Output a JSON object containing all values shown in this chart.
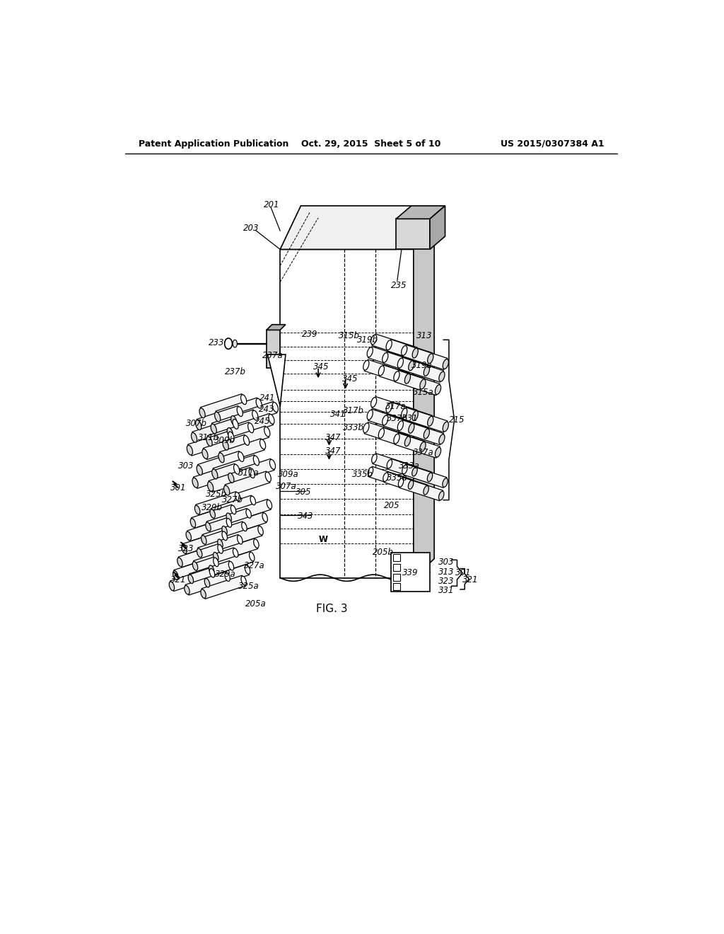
{
  "bg_color": "#ffffff",
  "line_color": "#000000",
  "header_left": "Patent Application Publication",
  "header_center": "Oct. 29, 2015  Sheet 5 of 10",
  "header_right": "US 2015/0307384 A1",
  "fig_label": "FIG. 3"
}
